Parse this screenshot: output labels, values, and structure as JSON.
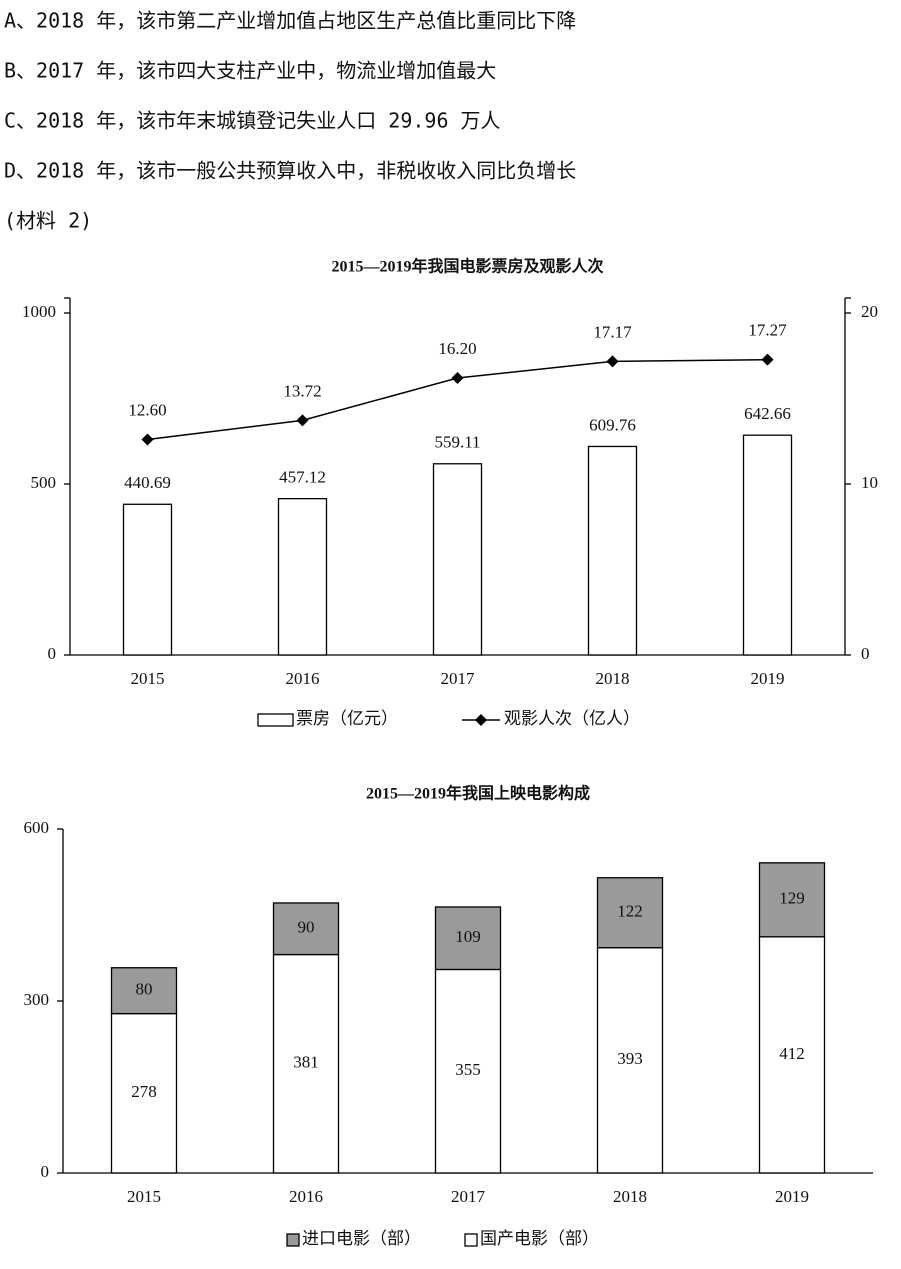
{
  "options": [
    "A、2018 年，该市第二产业增加值占地区生产总值比重同比下降",
    "B、2017 年，该市四大支柱产业中，物流业增加值最大",
    "C、2018 年，该市年末城镇登记失业人口 29.96 万人",
    "D、2018 年，该市一般公共预算收入中，非税收收入同比负增长"
  ],
  "material_label": "(材料 2)",
  "chart_data": [
    {
      "type": "combo",
      "title": "2015—2019年我国电影票房及观影人次",
      "categories": [
        "2015",
        "2016",
        "2017",
        "2018",
        "2019"
      ],
      "series": [
        {
          "name": "票房（亿元）",
          "type": "bar",
          "color": "#ffffff",
          "values": [
            440.69,
            457.12,
            559.11,
            609.76,
            642.66
          ]
        },
        {
          "name": "观影人次（亿人）",
          "type": "line",
          "axis": "y2",
          "color": "#000000",
          "values": [
            12.6,
            13.72,
            16.2,
            17.17,
            17.27
          ],
          "value_labels": [
            "12.60",
            "13.72",
            "16.20",
            "17.17",
            "17.27"
          ]
        }
      ],
      "ylim": [
        0,
        1000
      ],
      "yticks": [
        0,
        500,
        1000
      ],
      "y2lim": [
        0,
        20
      ],
      "y2ticks": [
        0,
        10,
        20
      ]
    },
    {
      "type": "bar",
      "stacked": true,
      "title": "2015—2019年我国上映电影构成",
      "categories": [
        "2015",
        "2016",
        "2017",
        "2018",
        "2019"
      ],
      "series": [
        {
          "name": "进口电影（部）",
          "color": "#9a9a9a",
          "values": [
            80,
            90,
            109,
            122,
            129
          ]
        },
        {
          "name": "国产电影（部）",
          "color": "#ffffff",
          "values": [
            278,
            381,
            355,
            393,
            412
          ]
        }
      ],
      "ylim": [
        0,
        600
      ],
      "yticks": [
        0,
        300,
        600
      ]
    }
  ]
}
